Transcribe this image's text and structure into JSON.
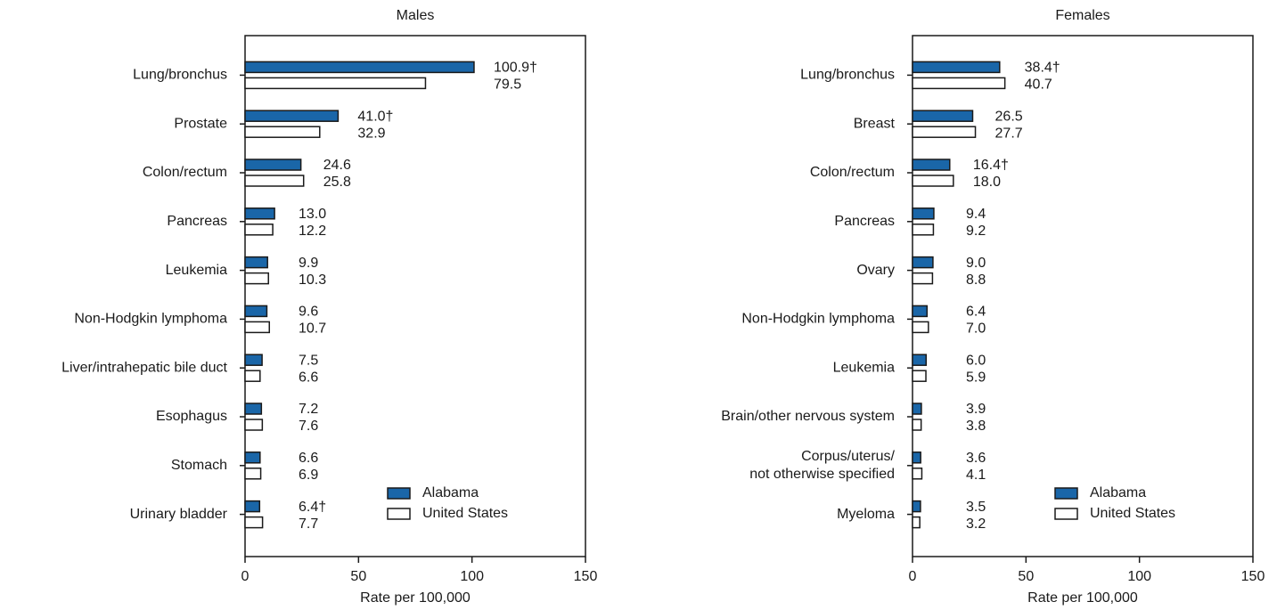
{
  "chart_data": [
    {
      "type": "barh",
      "title": "Males",
      "xlabel": "Rate per 100,000",
      "categories": [
        "Lung/bronchus",
        "Prostate",
        "Colon/rectum",
        "Pancreas",
        "Leukemia",
        "Non-Hodgkin lymphoma",
        "Liver/intrahepatic bile duct",
        "Esophagus",
        "Stomach",
        "Urinary bladder"
      ],
      "series": [
        {
          "name": "Alabama",
          "color": "#1a66a8",
          "values": [
            100.9,
            41.0,
            24.6,
            13.0,
            9.9,
            9.6,
            7.5,
            7.2,
            6.6,
            6.4
          ],
          "value_labels": [
            "100.9†",
            "41.0†",
            "24.6",
            "13.0",
            "9.9",
            "9.6",
            "7.5",
            "7.2",
            "6.6",
            "6.4†"
          ]
        },
        {
          "name": "United States",
          "color": "#ffffff",
          "values": [
            79.5,
            32.9,
            25.8,
            12.2,
            10.3,
            10.7,
            6.6,
            7.6,
            6.9,
            7.7
          ],
          "value_labels": [
            "79.5",
            "32.9",
            "25.8",
            "12.2",
            "10.3",
            "10.7",
            "6.6",
            "7.6",
            "6.9",
            "7.7"
          ]
        }
      ],
      "xlim": [
        0,
        150
      ],
      "xticks": [
        0,
        50,
        100,
        150
      ],
      "legend": "lower right"
    },
    {
      "type": "barh",
      "title": "Females",
      "xlabel": "Rate per 100,000",
      "categories": [
        "Lung/bronchus",
        "Breast",
        "Colon/rectum",
        "Pancreas",
        "Ovary",
        "Non-Hodgkin lymphoma",
        "Leukemia",
        "Brain/other nervous system",
        "Corpus/uterus/\nnot otherwise specified",
        "Myeloma"
      ],
      "series": [
        {
          "name": "Alabama",
          "color": "#1a66a8",
          "values": [
            38.4,
            26.5,
            16.4,
            9.4,
            9.0,
            6.4,
            6.0,
            3.9,
            3.6,
            3.5
          ],
          "value_labels": [
            "38.4†",
            "26.5",
            "16.4†",
            "9.4",
            "9.0",
            "6.4",
            "6.0",
            "3.9",
            "3.6",
            "3.5"
          ]
        },
        {
          "name": "United States",
          "color": "#ffffff",
          "values": [
            40.7,
            27.7,
            18.0,
            9.2,
            8.8,
            7.0,
            5.9,
            3.8,
            4.1,
            3.2
          ],
          "value_labels": [
            "40.7",
            "27.7",
            "18.0",
            "9.2",
            "8.8",
            "7.0",
            "5.9",
            "3.8",
            "4.1",
            "3.2"
          ]
        }
      ],
      "xlim": [
        0,
        150
      ],
      "xticks": [
        0,
        50,
        100,
        150
      ],
      "legend": "lower right"
    }
  ]
}
